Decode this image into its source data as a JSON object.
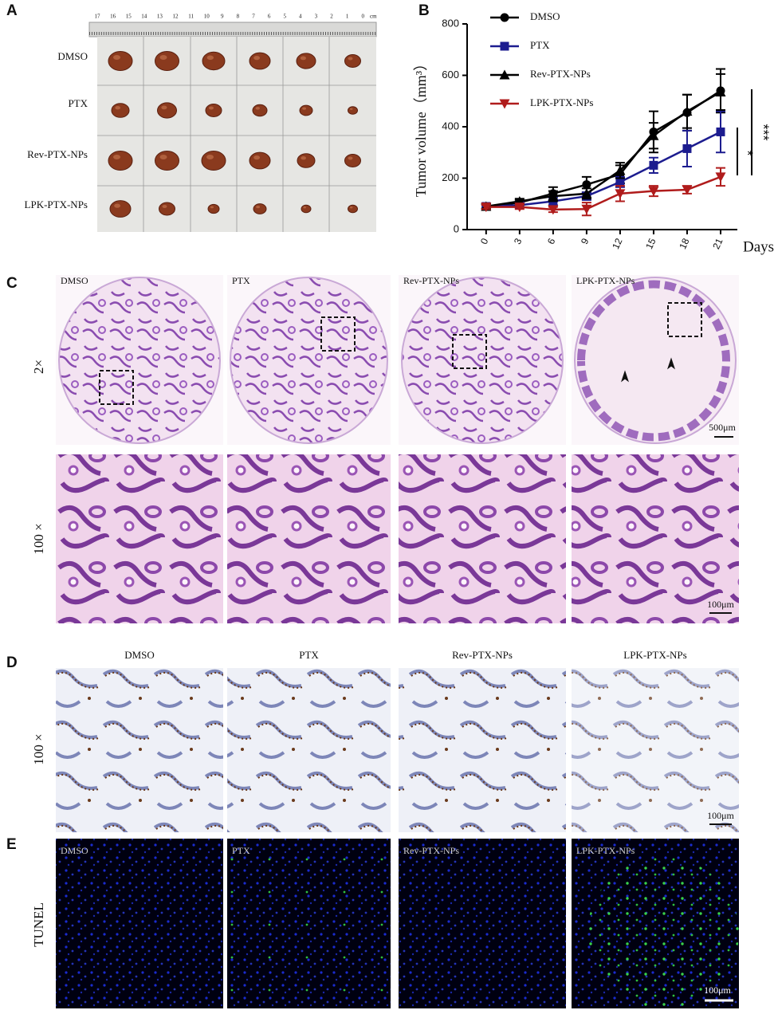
{
  "panels": {
    "a": {
      "label": "A",
      "ruler": {
        "ticks": [
          "17",
          "16",
          "15",
          "14",
          "13",
          "12",
          "11",
          "10",
          "9",
          "8",
          "7",
          "6",
          "5",
          "4",
          "3",
          "2",
          "1",
          "0"
        ],
        "unit": "cm"
      },
      "rows": [
        "DMSO",
        "PTX",
        "Rev-PTX-NPs",
        "LPK-PTX-NPs"
      ]
    },
    "b": {
      "label": "B"
    },
    "c": {
      "label": "C",
      "columns": [
        "DMSO",
        "PTX",
        "Rev-PTX-NPs",
        "LPK-PTX-NPs"
      ],
      "rows": [
        "2×",
        "100 ×"
      ],
      "scale_bars": [
        "500μm",
        "100μm"
      ]
    },
    "d": {
      "label": "D",
      "columns": [
        "DMSO",
        "PTX",
        "Rev-PTX-NPs",
        "LPK-PTX-NPs"
      ],
      "row": "100 ×",
      "scale_bar": "100μm"
    },
    "e": {
      "label": "E",
      "columns": [
        "DMSO",
        "PTX",
        "Rev-PTX-NPs",
        "LPK-PTX-NPs"
      ],
      "row": "TUNEL",
      "scale_bar": "100μm"
    }
  },
  "chart_data": {
    "type": "line",
    "y_label": "Tumor volume（mm³）",
    "x_label": "Days",
    "x": [
      0,
      3,
      6,
      9,
      12,
      15,
      18,
      21
    ],
    "xlim": [
      -1.7,
      22.5
    ],
    "xticks": [
      0,
      3,
      6,
      9,
      12,
      15,
      18,
      21
    ],
    "ylim": [
      0,
      800
    ],
    "yticks": [
      0,
      200,
      400,
      600,
      800
    ],
    "series": [
      {
        "name": "DMSO",
        "color": "#000000",
        "marker": "circle",
        "values": [
          90,
          105,
          140,
          175,
          215,
          380,
          455,
          540
        ],
        "errors": [
          10,
          10,
          25,
          30,
          35,
          80,
          70,
          85
        ]
      },
      {
        "name": "PTX",
        "color": "#1c1c8f",
        "marker": "square",
        "values": [
          90,
          95,
          110,
          130,
          185,
          250,
          315,
          380
        ],
        "errors": [
          8,
          10,
          15,
          15,
          20,
          30,
          70,
          80
        ]
      },
      {
        "name": "Rev-PTX-NPs",
        "color": "#000000",
        "marker": "triangle-up",
        "values": [
          90,
          110,
          130,
          140,
          230,
          365,
          460,
          535
        ],
        "errors": [
          8,
          10,
          20,
          20,
          30,
          50,
          65,
          70
        ]
      },
      {
        "name": "LPK-PTX-NPs",
        "color": "#b01c1c",
        "marker": "triangle-down",
        "values": [
          88,
          88,
          78,
          80,
          140,
          150,
          155,
          205
        ],
        "errors": [
          8,
          8,
          10,
          25,
          30,
          20,
          15,
          35
        ]
      }
    ],
    "significance": [
      "*",
      "***"
    ]
  }
}
